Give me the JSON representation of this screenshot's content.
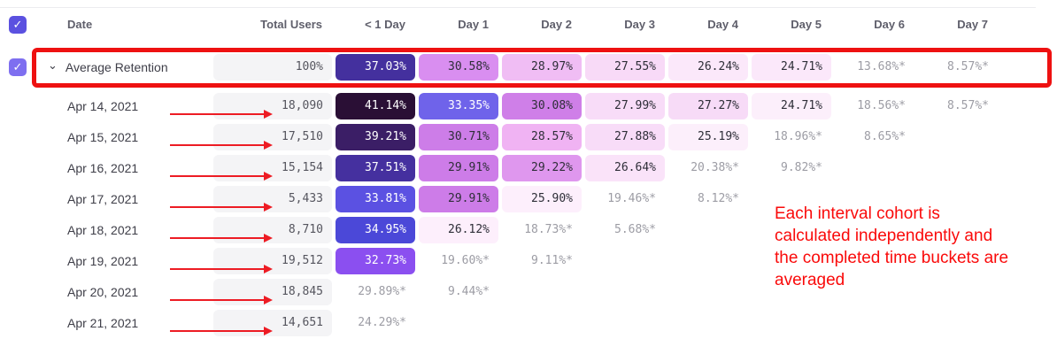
{
  "icons": {
    "checkbox_check": "✓",
    "chevron_down": "⌄"
  },
  "colors": {
    "header_checkbox": "#5b51e0",
    "row_checkbox": "#7e6ff0",
    "annotation_red": "#fa0a0a",
    "arrow_red": "#ed1c24",
    "box_red": "#ee1111",
    "muted_value": "#9c9ca4",
    "dark_value": "#2e2e38"
  },
  "table": {
    "select_all_checked": true,
    "columns": [
      "Date",
      "Total Users",
      "< 1 Day",
      "Day 1",
      "Day 2",
      "Day 3",
      "Day 4",
      "Day 5",
      "Day 6",
      "Day 7"
    ],
    "average_row": {
      "label": "Average Retention",
      "checked": true,
      "total": "100%",
      "cells": [
        {
          "v": "37.03%",
          "bg": "#44309e",
          "fg": "#ffffff"
        },
        {
          "v": "30.58%",
          "bg": "#d98ef0",
          "fg": "#2e2e38"
        },
        {
          "v": "28.97%",
          "bg": "#f0bdf4",
          "fg": "#2e2e38"
        },
        {
          "v": "27.55%",
          "bg": "#f8daf7",
          "fg": "#2e2e38"
        },
        {
          "v": "26.24%",
          "bg": "#fbe8fa",
          "fg": "#2e2e38"
        },
        {
          "v": "24.71%",
          "bg": "#fbe8fa",
          "fg": "#2e2e38"
        },
        {
          "v": "13.68%*",
          "bg": null,
          "fg": "#9c9ca4"
        },
        {
          "v": "8.57%*",
          "bg": null,
          "fg": "#9c9ca4"
        }
      ]
    },
    "rows": [
      {
        "date": "Apr 14, 2021",
        "total": "18,090",
        "cells": [
          {
            "v": "41.14%",
            "bg": "#2a0f35",
            "fg": "#ffffff"
          },
          {
            "v": "33.35%",
            "bg": "#6f63ea",
            "fg": "#ffffff"
          },
          {
            "v": "30.08%",
            "bg": "#cf7fe8",
            "fg": "#2e2e38"
          },
          {
            "v": "27.99%",
            "bg": "#f8dcf8",
            "fg": "#2e2e38"
          },
          {
            "v": "27.27%",
            "bg": "#f7dbf7",
            "fg": "#2e2e38"
          },
          {
            "v": "24.71%",
            "bg": "#fceffb",
            "fg": "#2e2e38"
          },
          {
            "v": "18.56%*",
            "bg": null,
            "fg": "#9c9ca4"
          },
          {
            "v": "8.57%*",
            "bg": null,
            "fg": "#9c9ca4"
          }
        ]
      },
      {
        "date": "Apr 15, 2021",
        "total": "17,510",
        "cells": [
          {
            "v": "39.21%",
            "bg": "#3b1e66",
            "fg": "#ffffff"
          },
          {
            "v": "30.71%",
            "bg": "#cd7de8",
            "fg": "#2e2e38"
          },
          {
            "v": "28.57%",
            "bg": "#f0b3f3",
            "fg": "#2e2e38"
          },
          {
            "v": "27.88%",
            "bg": "#f8dcf8",
            "fg": "#2e2e38"
          },
          {
            "v": "25.19%",
            "bg": "#fceffb",
            "fg": "#2e2e38"
          },
          {
            "v": "18.96%*",
            "bg": null,
            "fg": "#9c9ca4"
          },
          {
            "v": "8.65%*",
            "bg": null,
            "fg": "#9c9ca4"
          },
          null
        ]
      },
      {
        "date": "Apr 16, 2021",
        "total": "15,154",
        "cells": [
          {
            "v": "37.51%",
            "bg": "#45309f",
            "fg": "#ffffff"
          },
          {
            "v": "29.91%",
            "bg": "#cd7ce8",
            "fg": "#2e2e38"
          },
          {
            "v": "29.22%",
            "bg": "#df97ee",
            "fg": "#2e2e38"
          },
          {
            "v": "26.64%",
            "bg": "#fae3f9",
            "fg": "#2e2e38"
          },
          {
            "v": "20.38%*",
            "bg": null,
            "fg": "#9c9ca4"
          },
          {
            "v": "9.82%*",
            "bg": null,
            "fg": "#9c9ca4"
          },
          null,
          null
        ]
      },
      {
        "date": "Apr 17, 2021",
        "total": "5,433",
        "cells": [
          {
            "v": "33.81%",
            "bg": "#5b51e2",
            "fg": "#ffffff"
          },
          {
            "v": "29.91%",
            "bg": "#cd7ce8",
            "fg": "#2e2e38"
          },
          {
            "v": "25.90%",
            "bg": "#fdeffc",
            "fg": "#2e2e38"
          },
          {
            "v": "19.46%*",
            "bg": null,
            "fg": "#9c9ca4"
          },
          {
            "v": "8.12%*",
            "bg": null,
            "fg": "#9c9ca4"
          },
          null,
          null,
          null
        ]
      },
      {
        "date": "Apr 18, 2021",
        "total": "8,710",
        "cells": [
          {
            "v": "34.95%",
            "bg": "#4b48d8",
            "fg": "#ffffff"
          },
          {
            "v": "26.12%",
            "bg": "#fdeffc",
            "fg": "#2e2e38"
          },
          {
            "v": "18.73%*",
            "bg": null,
            "fg": "#9c9ca4"
          },
          {
            "v": "5.68%*",
            "bg": null,
            "fg": "#9c9ca4"
          },
          null,
          null,
          null,
          null
        ]
      },
      {
        "date": "Apr 19, 2021",
        "total": "19,512",
        "cells": [
          {
            "v": "32.73%",
            "bg": "#8b4ff0",
            "fg": "#ffffff"
          },
          {
            "v": "19.60%*",
            "bg": null,
            "fg": "#9c9ca4"
          },
          {
            "v": "9.11%*",
            "bg": null,
            "fg": "#9c9ca4"
          },
          null,
          null,
          null,
          null,
          null
        ]
      },
      {
        "date": "Apr 20, 2021",
        "total": "18,845",
        "cells": [
          {
            "v": "29.89%*",
            "bg": null,
            "fg": "#9c9ca4"
          },
          {
            "v": "9.44%*",
            "bg": null,
            "fg": "#9c9ca4"
          },
          null,
          null,
          null,
          null,
          null,
          null
        ]
      },
      {
        "date": "Apr 21, 2021",
        "total": "14,651",
        "cells": [
          {
            "v": "24.29%*",
            "bg": null,
            "fg": "#9c9ca4"
          },
          null,
          null,
          null,
          null,
          null,
          null,
          null
        ]
      }
    ]
  },
  "annotations": {
    "note_lines": [
      "Each interval cohort is",
      "calculated independently and",
      "the completed time buckets are",
      "averaged"
    ]
  }
}
